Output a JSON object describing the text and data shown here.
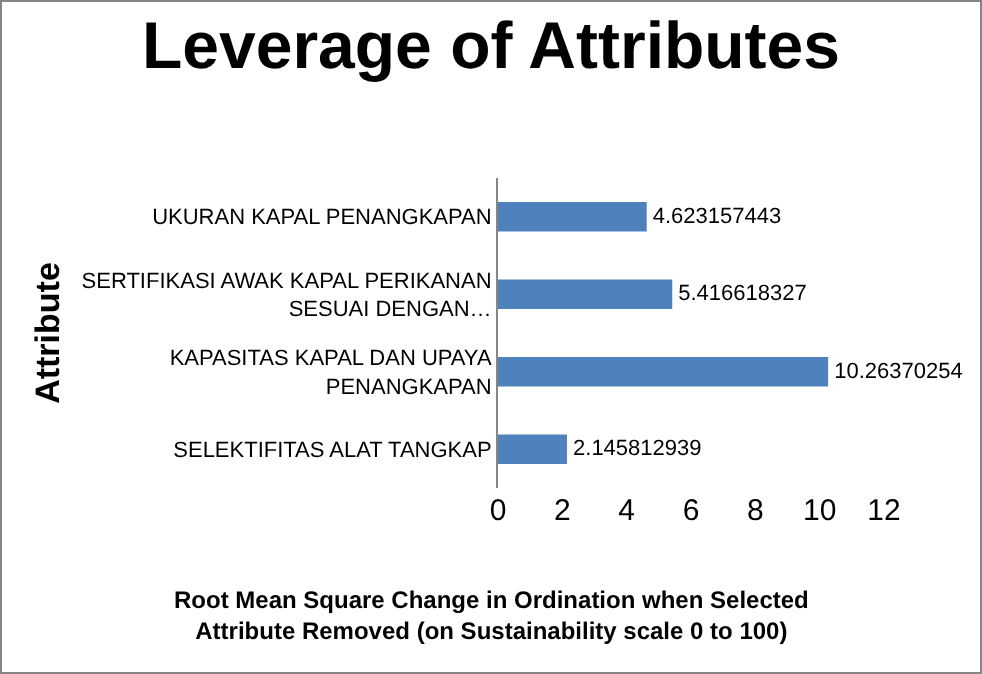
{
  "chart_data": {
    "type": "bar",
    "orientation": "horizontal",
    "title": "Leverage of Attributes",
    "ylabel": "Attribute",
    "xlabel": "Root Mean Square Change in Ordination when Selected Attribute Removed (on Sustainability scale 0 to 100)",
    "categories": [
      "UKURAN KAPAL PENANGKAPAN",
      "SERTIFIKASI AWAK KAPAL PERIKANAN SESUAI DENGAN…",
      "KAPASITAS KAPAL DAN UPAYA PENANGKAPAN",
      "SELEKTIFITAS ALAT TANGKAP"
    ],
    "values": [
      4.623157443,
      5.416618327,
      10.26370254,
      2.145812939
    ],
    "color": "#4f81bd",
    "data_labels": true,
    "xlim": [
      0,
      12
    ],
    "xticks": [
      0,
      2,
      4,
      6,
      8,
      10,
      12
    ],
    "grid": false,
    "legend": false
  }
}
